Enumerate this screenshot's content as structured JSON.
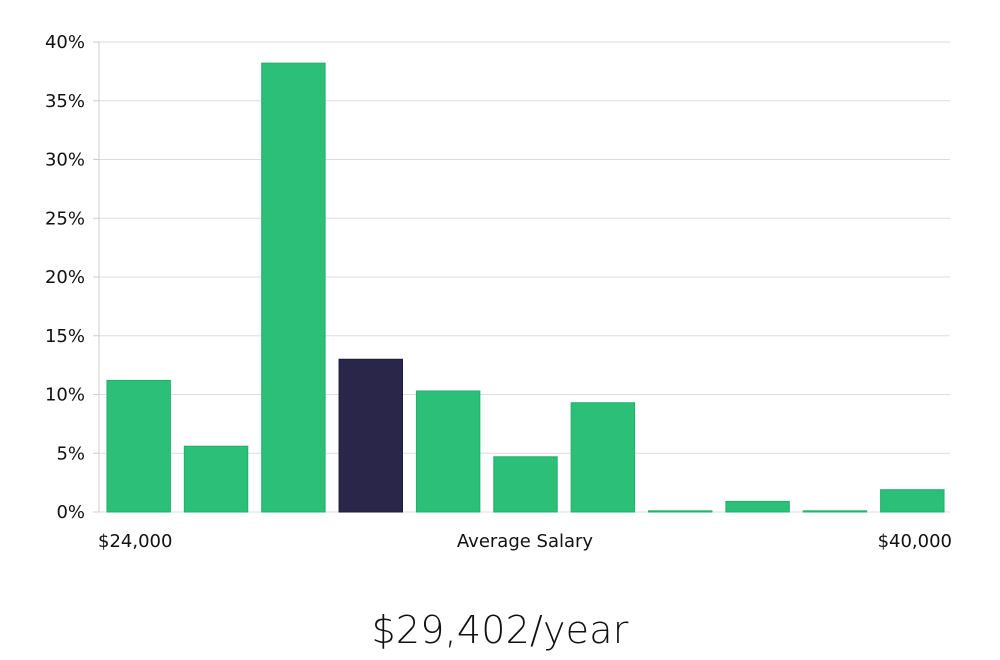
{
  "chart_data": {
    "type": "bar",
    "xlabel": "Average Salary",
    "x_min_label": "$24,000",
    "x_max_label": "$40,000",
    "ylim": [
      0,
      40
    ],
    "y_ticks": [
      "0%",
      "5%",
      "10%",
      "15%",
      "20%",
      "25%",
      "30%",
      "35%",
      "40%"
    ],
    "y_tick_values": [
      0,
      5,
      10,
      15,
      20,
      25,
      30,
      35,
      40
    ],
    "grid": true,
    "values": [
      11.2,
      5.6,
      38.2,
      13.0,
      10.3,
      4.7,
      9.3,
      0.1,
      0.9,
      0.1,
      1.9
    ],
    "highlight_index": 3,
    "colors": {
      "bar": "#2bbf77",
      "highlight": "#29264a",
      "grid": "#dddddd",
      "axis": "#cccccc"
    }
  },
  "summary": {
    "salary_text": "$29,402/year"
  }
}
